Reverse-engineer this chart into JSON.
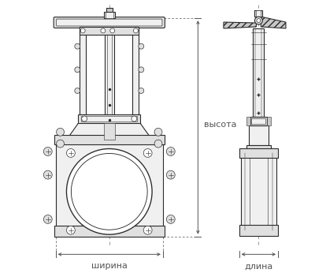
{
  "background_color": "#ffffff",
  "fig_width": 4.0,
  "fig_height": 3.46,
  "dpi": 100,
  "label_vysota": "высота",
  "label_shirina": "ширина",
  "label_dlina": "длина",
  "line_color": "#2a2a2a",
  "light_fill": "#f0f0f0",
  "mid_fill": "#e0e0e0",
  "dark_fill": "#c8c8c8",
  "dim_color": "#555555",
  "dash_color": "#888888"
}
